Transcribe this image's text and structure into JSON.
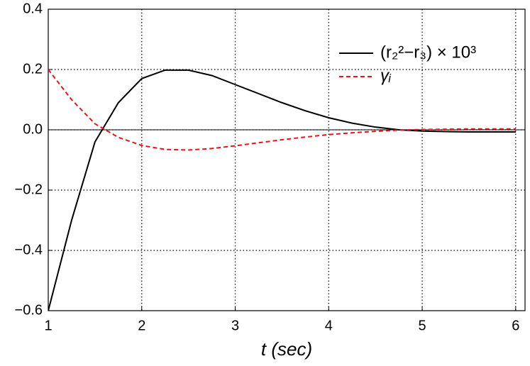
{
  "chart_data": {
    "type": "line",
    "xlabel": "t (sec)",
    "x": [
      1,
      1.25,
      1.5,
      1.75,
      2,
      2.25,
      2.5,
      2.75,
      3,
      3.25,
      3.5,
      3.75,
      4,
      4.25,
      4.5,
      4.75,
      5,
      5.25,
      5.5,
      5.75,
      6
    ],
    "series": [
      {
        "name": "(r₂²−r₃) × 10³",
        "color": "#000000",
        "dash": false,
        "values": [
          -0.6,
          -0.3,
          -0.04,
          0.09,
          0.17,
          0.198,
          0.198,
          0.18,
          0.15,
          0.12,
          0.09,
          0.063,
          0.04,
          0.022,
          0.009,
          0.0,
          -0.004,
          -0.006,
          -0.007,
          -0.007,
          -0.007
        ]
      },
      {
        "name": "γᵢ",
        "color": "#e8141c",
        "dash": true,
        "values": [
          0.2,
          0.1,
          0.02,
          -0.025,
          -0.052,
          -0.065,
          -0.067,
          -0.062,
          -0.053,
          -0.043,
          -0.033,
          -0.024,
          -0.016,
          -0.01,
          -0.005,
          -0.001,
          0.001,
          0.002,
          0.003,
          0.003,
          0.003
        ]
      }
    ],
    "xlim": [
      1,
      6.1
    ],
    "xticks": [
      1,
      2,
      3,
      4,
      5,
      6
    ],
    "ylim": [
      -0.6,
      0.4
    ],
    "yticks": [
      {
        "value": -0.6,
        "label": "−0.6"
      },
      {
        "value": -0.4,
        "label": "−0.4"
      },
      {
        "value": -0.2,
        "label": "−0.2"
      },
      {
        "value": 0,
        "label": "0.0"
      },
      {
        "value": 0.2,
        "label": "0.2"
      },
      {
        "value": 0.4,
        "label": "0.4"
      }
    ],
    "grid": true,
    "legend": "upper right"
  }
}
